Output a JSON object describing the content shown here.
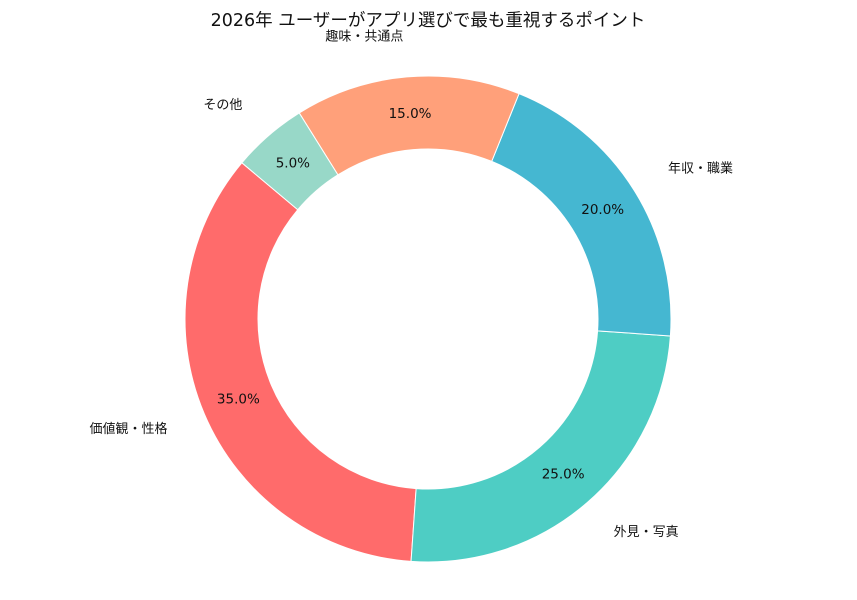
{
  "chart_data": {
    "type": "pie",
    "variant": "donut",
    "title": "2026年 ユーザーがアプリ選びで最も重視するポイント",
    "slices": [
      {
        "label": "価値観・性格",
        "value": 35.0,
        "percent_text": "35.0%",
        "color": "#FF6B6B"
      },
      {
        "label": "外見・写真",
        "value": 25.0,
        "percent_text": "25.0%",
        "color": "#4ECDC4"
      },
      {
        "label": "年収・職業",
        "value": 20.0,
        "percent_text": "20.0%",
        "color": "#45B7D1"
      },
      {
        "label": "趣味・共通点",
        "value": 15.0,
        "percent_text": "15.0%",
        "color": "#FFA07A"
      },
      {
        "label": "その他",
        "value": 5.0,
        "percent_text": "5.0%",
        "color": "#98D8C8"
      }
    ],
    "start_angle_deg": 140,
    "direction": "counterclockwise",
    "legend": "none",
    "background": "#FFFFFF"
  }
}
